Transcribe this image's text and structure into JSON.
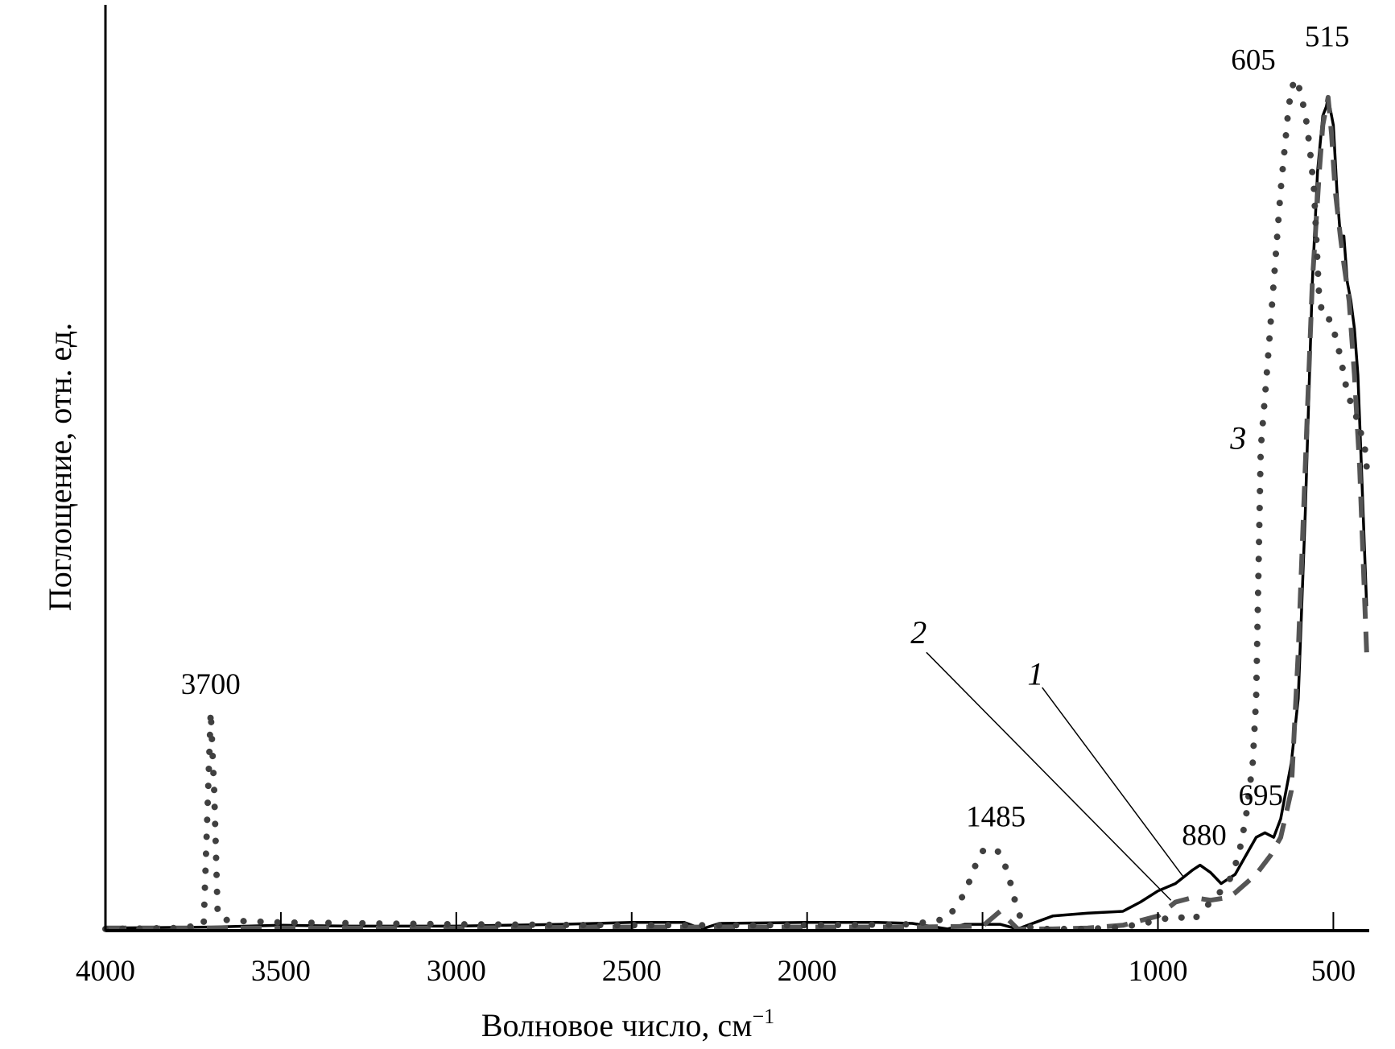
{
  "chart_data": {
    "type": "line",
    "title": "",
    "xlabel": "Волновое число, см",
    "xlabel_superscript": "−1",
    "ylabel": "Поглощение, отн. ед.",
    "xlim": [
      4000,
      400
    ],
    "ylim": [
      0,
      1
    ],
    "x_reversed": true,
    "grid": false,
    "xticks": [
      4000,
      3500,
      3000,
      2500,
      2000,
      1500,
      1000,
      500
    ],
    "xtick_labels": [
      "4000",
      "3500",
      "3000",
      "2500",
      "2000",
      "",
      "1000",
      "500"
    ],
    "series": [
      {
        "name": "1",
        "style": "solid",
        "color": "#000000",
        "x": [
          4000,
          3700,
          3500,
          3300,
          3000,
          2700,
          2500,
          2350,
          2300,
          2250,
          2000,
          1800,
          1700,
          1600,
          1550,
          1450,
          1400,
          1350,
          1300,
          1200,
          1100,
          1050,
          1000,
          950,
          900,
          880,
          850,
          820,
          780,
          720,
          695,
          670,
          650,
          620,
          600,
          580,
          560,
          545,
          530,
          520,
          515,
          505,
          500,
          490,
          480,
          470,
          460,
          450,
          440,
          430,
          420,
          410,
          405
        ],
        "y": [
          0.002,
          0.003,
          0.005,
          0.004,
          0.004,
          0.006,
          0.008,
          0.008,
          0.001,
          0.007,
          0.008,
          0.008,
          0.007,
          0.001,
          0.006,
          0.006,
          0.001,
          0.008,
          0.015,
          0.018,
          0.02,
          0.03,
          0.042,
          0.05,
          0.065,
          0.07,
          0.062,
          0.05,
          0.06,
          0.1,
          0.105,
          0.1,
          0.12,
          0.18,
          0.25,
          0.45,
          0.7,
          0.82,
          0.88,
          0.89,
          0.9,
          0.88,
          0.87,
          0.8,
          0.75,
          0.75,
          0.7,
          0.68,
          0.65,
          0.6,
          0.5,
          0.4,
          0.35
        ]
      },
      {
        "name": "2",
        "style": "dashed",
        "color": "#555555",
        "x": [
          4000,
          3500,
          3000,
          2500,
          2000,
          1700,
          1500,
          1450,
          1400,
          1300,
          1200,
          1100,
          1050,
          1000,
          950,
          900,
          850,
          800,
          780,
          720,
          680,
          650,
          620,
          600,
          580,
          560,
          540,
          530,
          520,
          515,
          505,
          495,
          480,
          470,
          455,
          440,
          425,
          410,
          405
        ],
        "y": [
          0.002,
          0.002,
          0.002,
          0.003,
          0.003,
          0.003,
          0.004,
          0.02,
          0.001,
          0.001,
          0.002,
          0.005,
          0.01,
          0.015,
          0.03,
          0.035,
          0.032,
          0.035,
          0.04,
          0.06,
          0.08,
          0.1,
          0.15,
          0.3,
          0.5,
          0.7,
          0.82,
          0.87,
          0.89,
          0.9,
          0.86,
          0.8,
          0.75,
          0.72,
          0.68,
          0.6,
          0.5,
          0.35,
          0.3
        ]
      },
      {
        "name": "3",
        "style": "dotted",
        "color": "#404040",
        "x": [
          4000,
          3800,
          3720,
          3710,
          3700,
          3690,
          3680,
          3650,
          3500,
          3000,
          2500,
          2000,
          1700,
          1600,
          1550,
          1520,
          1500,
          1485,
          1460,
          1440,
          1420,
          1400,
          1380,
          1350,
          1300,
          1200,
          1100,
          1000,
          950,
          900,
          850,
          800,
          770,
          750,
          730,
          720,
          707,
          690,
          668,
          650,
          630,
          620,
          605,
          590,
          575,
          566,
          555,
          540,
          525,
          510,
          500,
          480,
          460,
          450,
          430,
          410,
          405
        ],
        "y": [
          0.001,
          0.002,
          0.005,
          0.12,
          0.236,
          0.15,
          0.015,
          0.01,
          0.008,
          0.006,
          0.005,
          0.005,
          0.006,
          0.012,
          0.04,
          0.07,
          0.085,
          0.088,
          0.087,
          0.075,
          0.05,
          0.02,
          0.005,
          0.001,
          0.001,
          0.001,
          0.003,
          0.01,
          0.015,
          0.01,
          0.03,
          0.05,
          0.08,
          0.12,
          0.18,
          0.25,
          0.52,
          0.6,
          0.71,
          0.8,
          0.88,
          0.91,
          0.92,
          0.9,
          0.87,
          0.84,
          0.8,
          0.68,
          0.66,
          0.66,
          0.65,
          0.62,
          0.58,
          0.57,
          0.55,
          0.52,
          0.5
        ]
      }
    ],
    "annotations": [
      "3700",
      "1485",
      "880",
      "695",
      "605",
      "515"
    ],
    "curve_labels": [
      "1",
      "2",
      "3"
    ]
  }
}
